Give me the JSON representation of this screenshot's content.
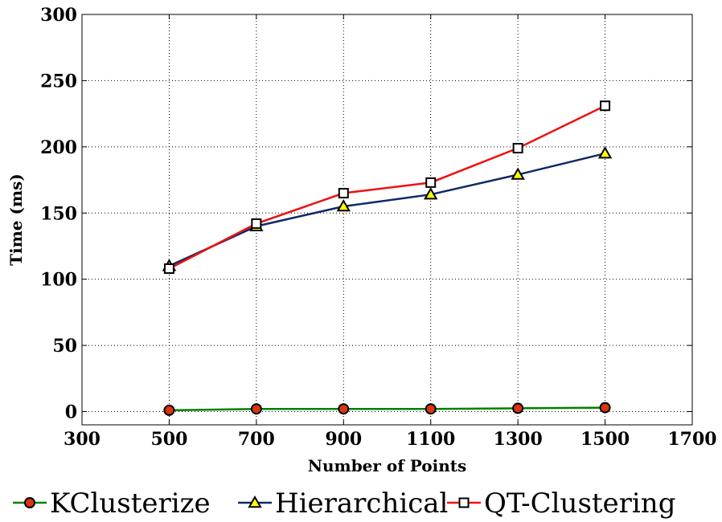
{
  "chart_data": {
    "type": "line",
    "xlabel": "Number of Points",
    "ylabel": "Time (ms)",
    "xlim": [
      300,
      1700
    ],
    "ylim": [
      -10,
      300
    ],
    "xticks": [
      300,
      500,
      700,
      900,
      1100,
      1300,
      1500,
      1700
    ],
    "yticks": [
      0,
      50,
      100,
      150,
      200,
      250,
      300
    ],
    "grid": true,
    "legend_position": "bottom",
    "x": [
      500,
      700,
      900,
      1100,
      1300,
      1500
    ],
    "series": [
      {
        "name": "KClusterize",
        "values": [
          1,
          2,
          2,
          2,
          2.5,
          3
        ],
        "line_color": "#008000",
        "marker": "circle",
        "marker_color": "#dd3311"
      },
      {
        "name": "Hierarchical",
        "values": [
          110,
          140,
          155,
          164,
          179,
          195
        ],
        "line_color": "#102a66",
        "marker": "triangle",
        "marker_color": "#ffff00"
      },
      {
        "name": "QT-Clustering",
        "values": [
          108,
          142,
          165,
          173,
          199,
          231
        ],
        "line_color": "#ee1111",
        "marker": "square",
        "marker_color": "#ffffff"
      }
    ]
  }
}
